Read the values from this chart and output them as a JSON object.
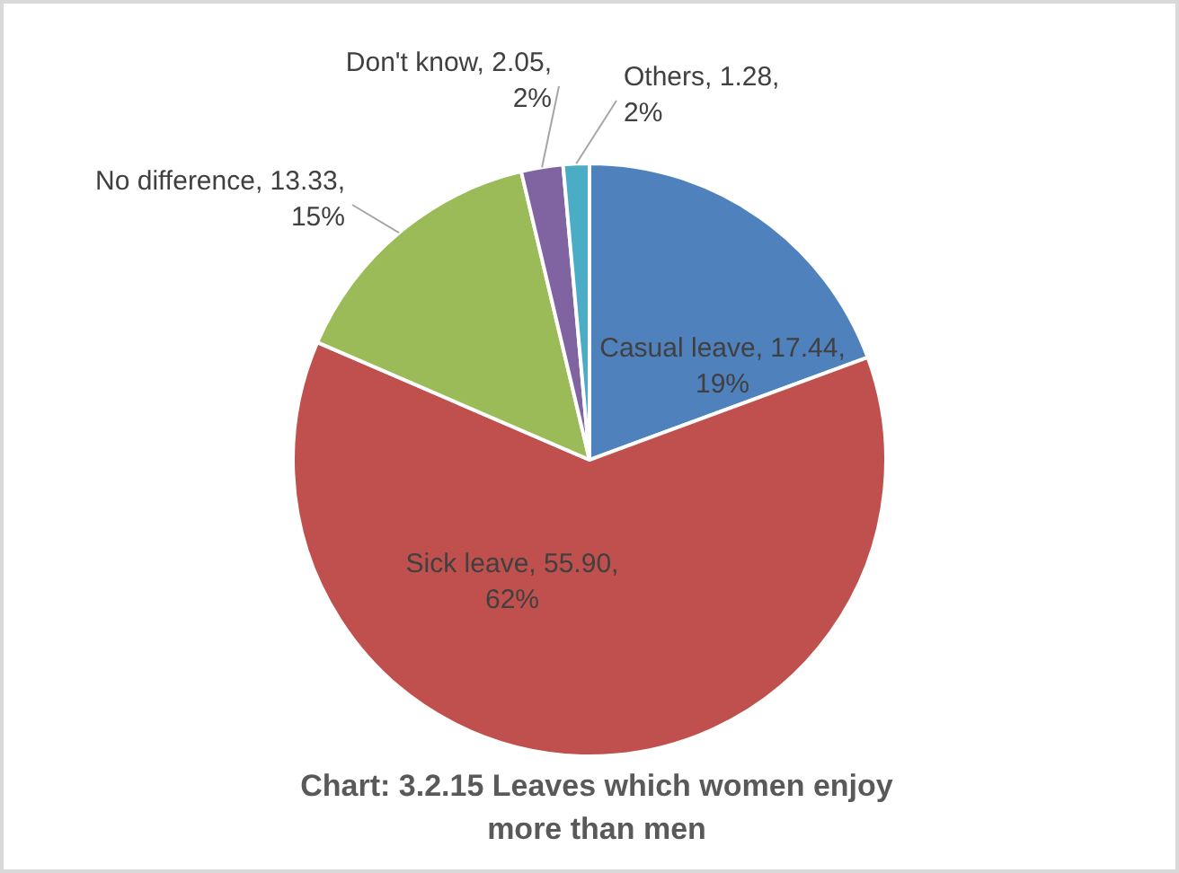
{
  "chart_data": {
    "type": "pie",
    "title": "Chart: 3.2.15 Leaves which women enjoy more than men",
    "categories": [
      "Casual leave",
      "Sick leave",
      "No difference",
      "Don't know",
      "Others"
    ],
    "values": [
      17.44,
      55.9,
      13.33,
      2.05,
      1.28
    ],
    "value_labels": [
      "17.44, 19%",
      "55.90, 62%",
      "13.33, 15%",
      "2.05, 2%",
      "1.28, 2%"
    ],
    "colors": [
      "#4f81bd",
      "#c0504d",
      "#9bbb59",
      "#8064a2",
      "#4bacc6"
    ],
    "legend": false
  }
}
